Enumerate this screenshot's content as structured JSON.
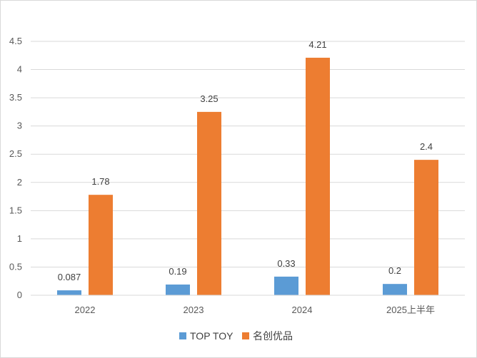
{
  "chart_data": {
    "type": "bar",
    "title": "",
    "xlabel": "",
    "ylabel": "",
    "categories": [
      "2022",
      "2023",
      "2024",
      "2025上半年"
    ],
    "series": [
      {
        "name": "TOP TOY",
        "color": "#5b9bd5",
        "values": [
          0.087,
          0.19,
          0.33,
          0.2
        ],
        "labels": [
          "0.087",
          "0.19",
          "0.33",
          "0.2"
        ]
      },
      {
        "name": "名创优品",
        "color": "#ed7d31",
        "values": [
          1.78,
          3.25,
          4.21,
          2.4
        ],
        "labels": [
          "1.78",
          "3.25",
          "4.21",
          "2.4"
        ]
      }
    ],
    "ylim": [
      0,
      4.5
    ],
    "yticks": [
      "0",
      "0.5",
      "1",
      "1.5",
      "2",
      "2.5",
      "3",
      "3.5",
      "4",
      "4.5"
    ],
    "grid": true,
    "legend_position": "bottom"
  }
}
